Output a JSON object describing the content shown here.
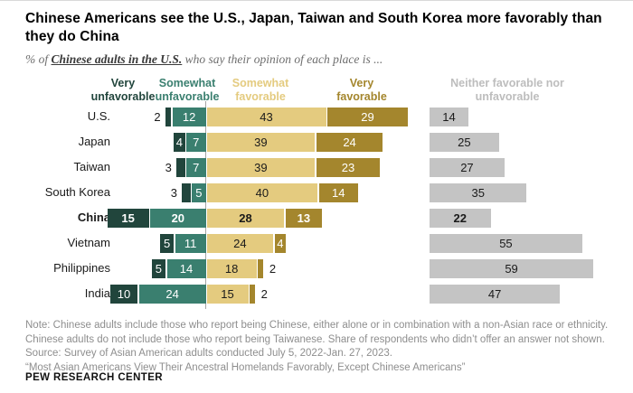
{
  "header": {
    "title": "Chinese Americans see the U.S., Japan, Taiwan and South Korea more favorably than they do China",
    "subtitle": {
      "prefix": "% of ",
      "emphasis": "Chinese adults in the U.S.",
      "suffix": " who say their opinion of each place is ..."
    }
  },
  "chart_data": {
    "type": "bar",
    "variant": "horizontal-diverging-stacked",
    "legend_position": "top",
    "value_labels": "on-bars",
    "categories": [
      "U.S.",
      "Japan",
      "Taiwan",
      "South Korea",
      "China",
      "Vietnam",
      "Philippines",
      "India"
    ],
    "bold_category": "China",
    "series": [
      {
        "name": "Very unfavorable",
        "color": "#21453c",
        "text_color": "#ffffff",
        "values": [
          2,
          4,
          3,
          3,
          15,
          5,
          5,
          10
        ]
      },
      {
        "name": "Somewhat unfavorable",
        "color": "#3a7f6f",
        "text_color": "#ffffff",
        "values": [
          12,
          7,
          7,
          5,
          20,
          11,
          14,
          24
        ]
      },
      {
        "name": "Somewhat favorable",
        "color": "#e4cb7f",
        "text_color": "#1a1a1a",
        "values": [
          43,
          39,
          39,
          40,
          28,
          24,
          18,
          15
        ]
      },
      {
        "name": "Very favorable",
        "color": "#a4862d",
        "text_color": "#ffffff",
        "values": [
          29,
          24,
          23,
          14,
          13,
          4,
          2,
          2
        ]
      },
      {
        "name": "Neither favorable nor unfavorable",
        "color": "#c4c4c4",
        "text_color": "#1a1a1a",
        "legend_text_color": "#bdbdbd",
        "values": [
          14,
          25,
          27,
          35,
          22,
          55,
          59,
          47
        ]
      }
    ]
  },
  "notes": [
    "Note: Chinese adults include those who report being Chinese, either alone or in combination with a non-Asian race or ethnicity. Chinese adults do not include those who report being Taiwanese. Share of respondents who didn’t offer an answer not shown.",
    "Source: Survey of Asian American adults conducted July 5, 2022-Jan. 27, 2023.",
    "“Most Asian Americans View Their Ancestral Homelands Favorably, Except Chinese Americans”"
  ],
  "footer": "PEW RESEARCH CENTER"
}
